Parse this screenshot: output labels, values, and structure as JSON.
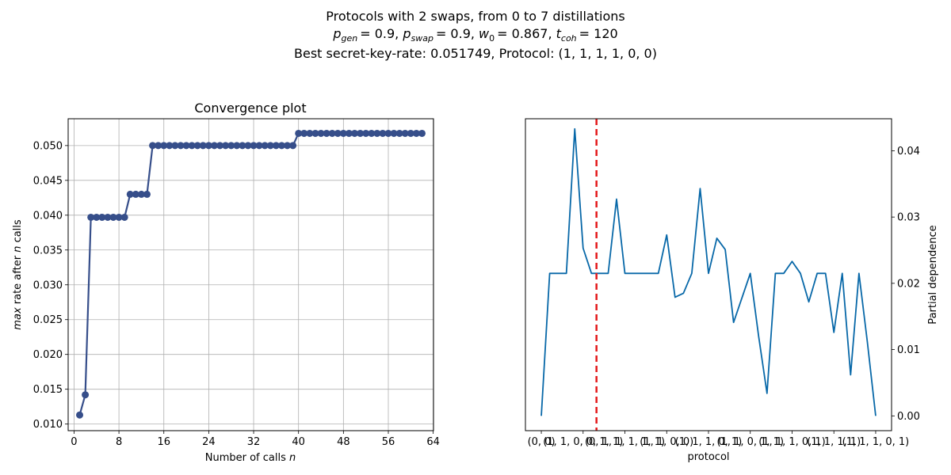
{
  "header": {
    "line1": "Protocols with 2 swaps, from 0 to 7 distillations",
    "line2": {
      "p": "p",
      "gen": "gen",
      "v1": "= 0.9, ",
      "p2": "p",
      "swap": "swap",
      "v2": "= 0.9, ",
      "w": "w",
      "w_sub": "0",
      "v3": "= 0.867, ",
      "t": "t",
      "coh": "coh",
      "v4": "= 120"
    },
    "line3": "Best secret-key-rate: 0.051749, Protocol: (1, 1, 1, 1, 0, 0)"
  },
  "chart_data": [
    {
      "type": "line",
      "title": "Convergence plot",
      "xlabel": "Number of calls n",
      "ylabel": "max rate after n calls",
      "xlabel_parts": [
        "Number of calls ",
        "n"
      ],
      "ylabel_parts": [
        "max",
        " rate after ",
        "n",
        " calls"
      ],
      "xlim": [
        -1.05,
        64.05
      ],
      "ylim": [
        0.00905,
        0.05385
      ],
      "xticks": [
        0,
        8,
        16,
        24,
        32,
        40,
        48,
        56,
        64
      ],
      "yticks": [
        0.01,
        0.015,
        0.02,
        0.025,
        0.03,
        0.035,
        0.04,
        0.045,
        0.05
      ],
      "ytick_labels": [
        "0.010",
        "0.015",
        "0.020",
        "0.025",
        "0.030",
        "0.035",
        "0.040",
        "0.045",
        "0.050"
      ],
      "grid": true,
      "color": "#364e8a",
      "x": [
        1,
        2,
        3,
        4,
        5,
        6,
        7,
        8,
        9,
        10,
        11,
        12,
        13,
        14,
        15,
        16,
        17,
        18,
        19,
        20,
        21,
        22,
        23,
        24,
        25,
        26,
        27,
        28,
        29,
        30,
        31,
        32,
        33,
        34,
        35,
        36,
        37,
        38,
        39,
        40,
        41,
        42,
        43,
        44,
        45,
        46,
        47,
        48,
        49,
        50,
        51,
        52,
        53,
        54,
        55,
        56,
        57,
        58,
        59,
        60,
        61,
        62
      ],
      "y": [
        0.0113,
        0.0142,
        0.0397,
        0.0397,
        0.0397,
        0.0397,
        0.0397,
        0.0397,
        0.0397,
        0.043,
        0.043,
        0.043,
        0.043,
        0.05,
        0.05,
        0.05,
        0.05,
        0.05,
        0.05,
        0.05,
        0.05,
        0.05,
        0.05,
        0.05,
        0.05,
        0.05,
        0.05,
        0.05,
        0.05,
        0.05,
        0.05,
        0.05,
        0.05,
        0.05,
        0.05,
        0.05,
        0.05,
        0.05,
        0.05,
        0.05175,
        0.05175,
        0.05175,
        0.05175,
        0.05175,
        0.05175,
        0.05175,
        0.05175,
        0.05175,
        0.05175,
        0.05175,
        0.05175,
        0.05175,
        0.05175,
        0.05175,
        0.05175,
        0.05175,
        0.05175,
        0.05175,
        0.05175,
        0.05175,
        0.05175,
        0.05175
      ]
    },
    {
      "type": "line",
      "title": "",
      "xlabel": "protocol",
      "ylabel": "Partial dependence",
      "xlim": [
        -1.9,
        41.9
      ],
      "ylim": [
        -0.00223,
        0.04483
      ],
      "yticks": [
        0.0,
        0.01,
        0.02,
        0.03,
        0.04
      ],
      "ytick_labels": [
        "0.00",
        "0.01",
        "0.02",
        "0.03",
        "0.04"
      ],
      "xtick_positions": [
        0,
        5,
        10,
        15,
        20,
        25,
        30,
        35,
        40
      ],
      "xtick_labels": [
        "(0, 0)",
        "(1, 1, 0, 0, 1, 1)",
        "(0, 1, 1, 1, 1, 1)",
        "(1, 1, 0, 0)",
        "(1, 1, 1, 0, 1)",
        "(1, 1, 0, 1, 1)",
        "(1, 1, 1, 0, 1)",
        "(1, 1, 1, 1)",
        "(1, 1, 1, 0, 1)"
      ],
      "best_index": 6.6,
      "line_color": "#0868a8",
      "best_color": "#e41a1c",
      "x": [
        0,
        1,
        2,
        3,
        4,
        5,
        6,
        7,
        8,
        9,
        10,
        11,
        12,
        13,
        14,
        15,
        16,
        17,
        18,
        19,
        20,
        21,
        22,
        23,
        24,
        25,
        26,
        27,
        28,
        29,
        30,
        31,
        32,
        33,
        34,
        35,
        36,
        37,
        38,
        39,
        40
      ],
      "y": [
        0.0,
        0.0215,
        0.0215,
        0.0215,
        0.0433,
        0.0253,
        0.0215,
        0.0215,
        0.0215,
        0.0327,
        0.0215,
        0.0215,
        0.0215,
        0.0215,
        0.0215,
        0.0273,
        0.0179,
        0.0185,
        0.0215,
        0.0343,
        0.0215,
        0.0268,
        0.0251,
        0.0141,
        0.0178,
        0.0215,
        0.012,
        0.0034,
        0.0215,
        0.0215,
        0.0233,
        0.0215,
        0.0172,
        0.0215,
        0.0215,
        0.0126,
        0.0215,
        0.0062,
        0.0215,
        0.0112,
        0.0
      ]
    }
  ]
}
